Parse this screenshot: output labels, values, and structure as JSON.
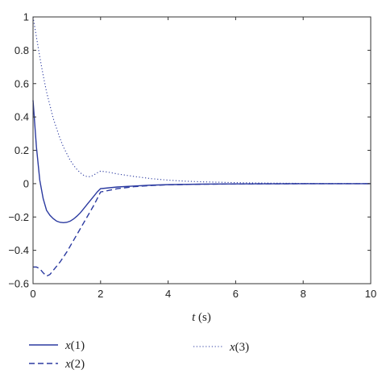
{
  "chart_data": {
    "type": "line",
    "title": "",
    "xlabel_var": "t",
    "xlabel_unit": "(s)",
    "ylabel": "",
    "xlim": [
      0,
      10
    ],
    "ylim": [
      -0.6,
      1
    ],
    "xticks": [
      0,
      2,
      4,
      6,
      8,
      10
    ],
    "yticks": [
      -0.6,
      -0.4,
      -0.2,
      0,
      0.2,
      0.4,
      0.6,
      0.8,
      1
    ],
    "ytick_labels": [
      "−0.6",
      "−0.4",
      "−0.2",
      "0",
      "0.2",
      "0.4",
      "0.6",
      "0.8",
      "1"
    ],
    "grid": false,
    "legend_position": "bottom",
    "colors": {
      "series": "#2b3aa0",
      "axes": "#333333"
    },
    "series": [
      {
        "name": "x(1)",
        "var": "x",
        "index": "1",
        "style": "solid",
        "x": [
          0,
          0.1,
          0.2,
          0.3,
          0.4,
          0.5,
          0.6,
          0.7,
          0.8,
          0.9,
          1.0,
          1.1,
          1.2,
          1.3,
          1.4,
          1.5,
          1.6,
          1.7,
          1.8,
          1.9,
          2.0,
          2.5,
          3.0,
          3.5,
          4.0,
          5.0,
          6.0,
          7.0,
          8.0,
          9.0,
          10.0
        ],
        "y": [
          0.5,
          0.22,
          0.02,
          -0.09,
          -0.16,
          -0.19,
          -0.21,
          -0.225,
          -0.232,
          -0.234,
          -0.232,
          -0.225,
          -0.212,
          -0.195,
          -0.175,
          -0.15,
          -0.125,
          -0.1,
          -0.075,
          -0.05,
          -0.03,
          -0.02,
          -0.014,
          -0.009,
          -0.006,
          -0.003,
          -0.0015,
          -0.0008,
          -0.0004,
          -0.0002,
          -0.0001
        ]
      },
      {
        "name": "x(2)",
        "var": "x",
        "index": "2",
        "style": "dashed",
        "x": [
          0,
          0.1,
          0.2,
          0.3,
          0.4,
          0.5,
          0.6,
          0.8,
          1.0,
          1.2,
          1.4,
          1.6,
          1.8,
          2.0,
          2.5,
          3.0,
          3.5,
          4.0,
          5.0,
          6.0,
          7.0,
          8.0,
          9.0,
          10.0
        ],
        "y": [
          -0.5,
          -0.5,
          -0.51,
          -0.535,
          -0.555,
          -0.545,
          -0.52,
          -0.47,
          -0.41,
          -0.34,
          -0.27,
          -0.2,
          -0.13,
          -0.05,
          -0.03,
          -0.018,
          -0.011,
          -0.007,
          -0.0035,
          -0.0018,
          -0.0009,
          -0.0004,
          -0.0002,
          -0.0001
        ]
      },
      {
        "name": "x(3)",
        "var": "x",
        "index": "3",
        "style": "dotted",
        "x": [
          0,
          0.1,
          0.2,
          0.3,
          0.4,
          0.5,
          0.6,
          0.7,
          0.8,
          0.9,
          1.0,
          1.1,
          1.2,
          1.3,
          1.4,
          1.5,
          1.6,
          1.7,
          1.8,
          1.9,
          2.0,
          2.2,
          2.5,
          3.0,
          3.5,
          4.0,
          4.5,
          5.0,
          6.0,
          7.0,
          8.0,
          9.0,
          10.0
        ],
        "y": [
          1.0,
          0.88,
          0.76,
          0.65,
          0.55,
          0.47,
          0.39,
          0.33,
          0.27,
          0.22,
          0.18,
          0.14,
          0.11,
          0.085,
          0.065,
          0.05,
          0.042,
          0.042,
          0.052,
          0.065,
          0.075,
          0.07,
          0.058,
          0.043,
          0.03,
          0.021,
          0.015,
          0.011,
          0.006,
          0.003,
          0.0015,
          0.0008,
          0.0004
        ]
      }
    ]
  }
}
